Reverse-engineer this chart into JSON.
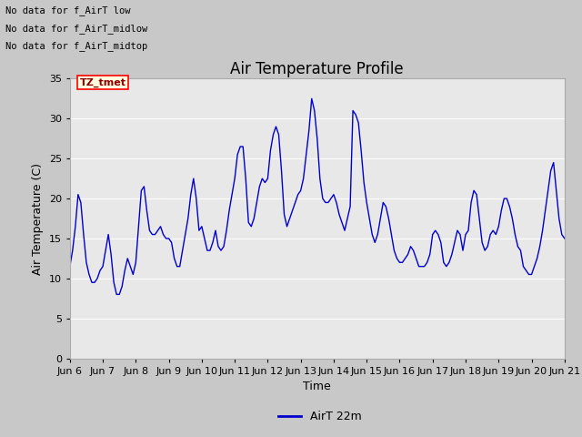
{
  "title": "Air Temperature Profile",
  "xlabel": "Time",
  "ylabel": "Air Temperature (C)",
  "legend_label": "AirT 22m",
  "line_color": "#0000cc",
  "fig_bg_color": "#c8c8c8",
  "plot_bg_color": "#e8e8e8",
  "ylim": [
    0,
    35
  ],
  "yticks": [
    0,
    5,
    10,
    15,
    20,
    25,
    30,
    35
  ],
  "annotations_text": [
    "No data for f_AirT low",
    "No data for f_AirT_midlow",
    "No data for f_AirT_midtop"
  ],
  "annotation_box_text": "TZ_tmet",
  "xticklabels": [
    "Jun 6",
    "Jun 7",
    "Jun 8",
    "Jun 9",
    "Jun 10",
    "Jun 11",
    "Jun 12",
    "Jun 13",
    "Jun 14",
    "Jun 15",
    "Jun 16",
    "Jun 17",
    "Jun 18",
    "Jun 19",
    "Jun 20",
    "Jun 21"
  ],
  "temp_data_x": [
    0.0,
    0.083,
    0.167,
    0.25,
    0.333,
    0.417,
    0.5,
    0.583,
    0.667,
    0.75,
    0.833,
    0.917,
    1.0,
    1.083,
    1.167,
    1.25,
    1.333,
    1.417,
    1.5,
    1.583,
    1.667,
    1.75,
    1.833,
    1.917,
    2.0,
    2.083,
    2.167,
    2.25,
    2.333,
    2.417,
    2.5,
    2.583,
    2.667,
    2.75,
    2.833,
    2.917,
    3.0,
    3.083,
    3.167,
    3.25,
    3.333,
    3.417,
    3.5,
    3.583,
    3.667,
    3.75,
    3.833,
    3.917,
    4.0,
    4.083,
    4.167,
    4.25,
    4.333,
    4.417,
    4.5,
    4.583,
    4.667,
    4.75,
    4.833,
    4.917,
    5.0,
    5.083,
    5.167,
    5.25,
    5.333,
    5.417,
    5.5,
    5.583,
    5.667,
    5.75,
    5.833,
    5.917,
    6.0,
    6.083,
    6.167,
    6.25,
    6.333,
    6.417,
    6.5,
    6.583,
    6.667,
    6.75,
    6.833,
    6.917,
    7.0,
    7.083,
    7.167,
    7.25,
    7.333,
    7.417,
    7.5,
    7.583,
    7.667,
    7.75,
    7.833,
    7.917,
    8.0,
    8.083,
    8.167,
    8.25,
    8.333,
    8.417,
    8.5,
    8.583,
    8.667,
    8.75,
    8.833,
    8.917,
    9.0,
    9.083,
    9.167,
    9.25,
    9.333,
    9.417,
    9.5,
    9.583,
    9.667,
    9.75,
    9.833,
    9.917,
    10.0,
    10.083,
    10.167,
    10.25,
    10.333,
    10.417,
    10.5,
    10.583,
    10.667,
    10.75,
    10.833,
    10.917,
    11.0,
    11.083,
    11.167,
    11.25,
    11.333,
    11.417,
    11.5,
    11.583,
    11.667,
    11.75,
    11.833,
    11.917,
    12.0,
    12.083,
    12.167,
    12.25,
    12.333,
    12.417,
    12.5,
    12.583,
    12.667,
    12.75,
    12.833,
    12.917,
    13.0,
    13.083,
    13.167,
    13.25,
    13.333,
    13.417,
    13.5,
    13.583,
    13.667,
    13.75,
    13.833,
    13.917,
    14.0,
    14.083,
    14.167,
    14.25,
    14.333,
    14.417,
    14.5,
    14.583,
    14.667,
    14.75,
    14.833,
    14.917,
    15.0
  ],
  "temp_data_y": [
    11.5,
    13.5,
    16.5,
    20.5,
    19.5,
    15.5,
    12.0,
    10.5,
    9.5,
    9.5,
    10.0,
    11.0,
    11.5,
    13.5,
    15.5,
    13.0,
    9.5,
    8.0,
    8.0,
    9.0,
    11.0,
    12.5,
    11.5,
    10.5,
    12.0,
    16.5,
    21.0,
    21.5,
    18.5,
    16.0,
    15.5,
    15.5,
    16.0,
    16.5,
    15.5,
    15.0,
    15.0,
    14.5,
    12.5,
    11.5,
    11.5,
    13.5,
    15.5,
    17.5,
    20.5,
    22.5,
    20.0,
    16.0,
    16.5,
    15.0,
    13.5,
    13.5,
    14.5,
    16.0,
    14.0,
    13.5,
    14.0,
    16.0,
    18.5,
    20.5,
    22.5,
    25.5,
    26.5,
    26.5,
    22.5,
    17.0,
    16.5,
    17.5,
    19.5,
    21.5,
    22.5,
    22.0,
    22.5,
    26.0,
    28.0,
    29.0,
    28.0,
    23.5,
    18.0,
    16.5,
    17.5,
    18.5,
    19.5,
    20.5,
    21.0,
    22.5,
    25.5,
    28.5,
    32.5,
    31.0,
    27.5,
    22.5,
    20.0,
    19.5,
    19.5,
    20.0,
    20.5,
    19.5,
    18.0,
    17.0,
    16.0,
    17.5,
    19.0,
    31.0,
    30.5,
    29.5,
    26.0,
    22.0,
    19.5,
    17.5,
    15.5,
    14.5,
    15.5,
    17.5,
    19.5,
    19.0,
    17.5,
    15.5,
    13.5,
    12.5,
    12.0,
    12.0,
    12.5,
    13.0,
    14.0,
    13.5,
    12.5,
    11.5,
    11.5,
    11.5,
    12.0,
    13.0,
    15.5,
    16.0,
    15.5,
    14.5,
    12.0,
    11.5,
    12.0,
    13.0,
    14.5,
    16.0,
    15.5,
    13.5,
    15.5,
    16.0,
    19.5,
    21.0,
    20.5,
    17.5,
    14.5,
    13.5,
    14.0,
    15.5,
    16.0,
    15.5,
    16.5,
    18.5,
    20.0,
    20.0,
    19.0,
    17.5,
    15.5,
    14.0,
    13.5,
    11.5,
    11.0,
    10.5,
    10.5,
    11.5,
    12.5,
    14.0,
    16.0,
    18.5,
    21.0,
    23.5,
    24.5,
    21.0,
    17.5,
    15.5,
    15.0
  ]
}
